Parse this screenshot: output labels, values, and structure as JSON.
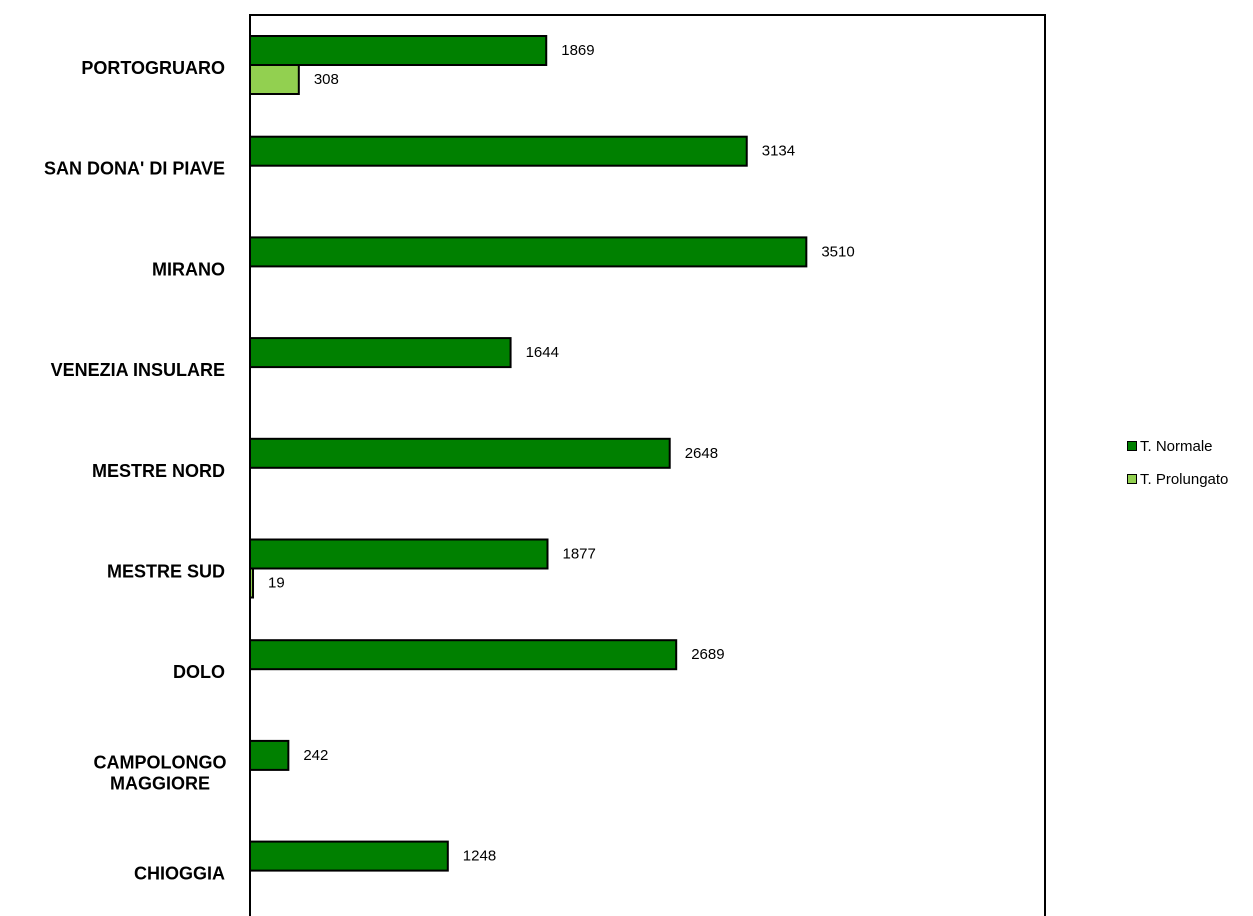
{
  "chart_data": {
    "type": "bar",
    "orientation": "horizontal",
    "categories": [
      [
        "PORTOGRUARO"
      ],
      [
        "SAN DONA' DI PIAVE"
      ],
      [
        "MIRANO"
      ],
      [
        "VENEZIA INSULARE"
      ],
      [
        "MESTRE NORD"
      ],
      [
        "MESTRE SUD"
      ],
      [
        "DOLO"
      ],
      [
        "CAMPOLONGO",
        "MAGGIORE"
      ],
      [
        "CHIOGGIA"
      ]
    ],
    "series": [
      {
        "name": "T. Normale",
        "color": "#008000",
        "values": [
          1869,
          3134,
          3510,
          1644,
          2648,
          1877,
          2689,
          242,
          1248
        ]
      },
      {
        "name": "T. Prolungato",
        "color": "#92d050",
        "values": [
          308,
          null,
          null,
          null,
          null,
          19,
          null,
          null,
          null
        ]
      }
    ],
    "xlim": [
      0,
      5000
    ],
    "grid": false,
    "legend_position": "right"
  }
}
